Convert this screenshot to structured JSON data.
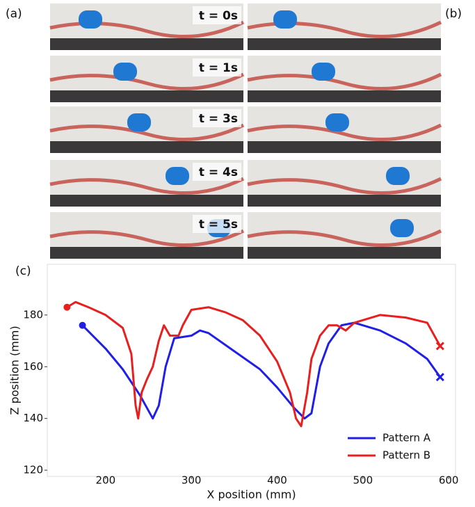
{
  "figure": {
    "panel_labels": [
      "(a)",
      "(b)",
      "(c)"
    ],
    "times": [
      "t = 0s",
      "t = 1s",
      "t = 3s",
      "t = 4s",
      "t = 5s"
    ]
  },
  "chart_data": {
    "type": "line",
    "xlabel": "X position (mm)",
    "ylabel": "Z position (mm)",
    "xlim": [
      132,
      608
    ],
    "ylim": [
      117.6,
      199.6
    ],
    "xticks": [
      200,
      300,
      400,
      500,
      600
    ],
    "yticks": [
      120,
      140,
      160,
      180
    ],
    "legend": "lower right",
    "series": [
      {
        "name": "Pattern A",
        "color": "#1f1fe8",
        "x": [
          173,
          200,
          220,
          240,
          255,
          262,
          270,
          280,
          300,
          310,
          320,
          350,
          380,
          400,
          420,
          432,
          440,
          450,
          460,
          475,
          490,
          520,
          550,
          575,
          590
        ],
        "values": [
          176,
          167,
          159,
          149,
          140,
          145,
          160,
          171,
          172,
          174,
          173,
          166,
          159,
          152,
          144,
          140,
          142,
          160,
          169,
          176,
          177,
          174,
          169,
          163,
          156
        ]
      },
      {
        "name": "Pattern B",
        "color": "#e81f1f",
        "x": [
          155,
          165,
          180,
          200,
          220,
          230,
          235,
          238,
          242,
          248,
          255,
          262,
          268,
          275,
          285,
          290,
          300,
          320,
          340,
          360,
          380,
          400,
          415,
          422,
          428,
          435,
          440,
          450,
          460,
          470,
          480,
          490,
          520,
          550,
          575,
          590
        ],
        "values": [
          183,
          185,
          183,
          180,
          175,
          165,
          145,
          140,
          150,
          155,
          160,
          170,
          176,
          172,
          172,
          176,
          182,
          183,
          181,
          178,
          172,
          162,
          150,
          140,
          137,
          150,
          163,
          172,
          176,
          176,
          174,
          177,
          180,
          179,
          177,
          168
        ]
      }
    ]
  }
}
